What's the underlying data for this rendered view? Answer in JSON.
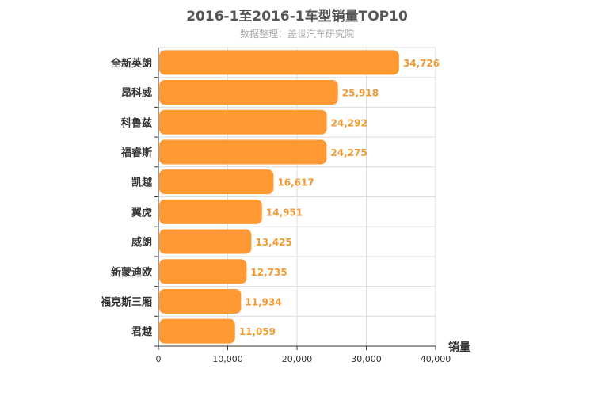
{
  "chart_data": {
    "type": "bar",
    "orientation": "horizontal",
    "title": "2016-1至2016-1车型销量TOP10",
    "subtitle": "数据整理：盖世汽车研究院",
    "categories": [
      "全新英朗",
      "昂科威",
      "科鲁兹",
      "福睿斯",
      "凯越",
      "翼虎",
      "威朗",
      "新蒙迪欧",
      "福克斯三厢",
      "君越"
    ],
    "values": [
      34726,
      25918,
      24292,
      24275,
      16617,
      14951,
      13425,
      12735,
      11934,
      11059
    ],
    "value_labels": [
      "34,726",
      "25,918",
      "24,292",
      "24,275",
      "16,617",
      "14,951",
      "13,425",
      "12,735",
      "11,934",
      "11,059"
    ],
    "xlabel": "销量",
    "ylabel": "",
    "xlim": [
      0,
      40000
    ],
    "xticks": [
      0,
      10000,
      20000,
      30000,
      40000
    ],
    "xtick_labels": [
      "0",
      "10,000",
      "20,000",
      "30,000",
      "40,000"
    ],
    "grid": true,
    "bar_color": "#ff9933",
    "label_color": "#f39a33"
  }
}
